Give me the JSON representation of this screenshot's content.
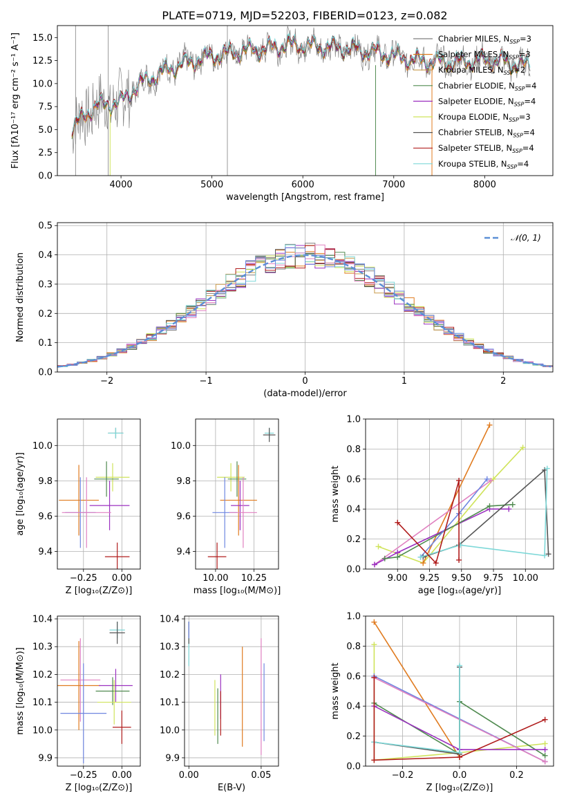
{
  "title": "PLATE=0719, MJD=52203, FIBERID=0123, z=0.082",
  "colors": {
    "c_miles": "#7f7f7f",
    "s_miles": "#e07b1f",
    "k_miles": "#c99a4a",
    "c_elodie": "#4f8a4f",
    "s_elodie": "#9b30c0",
    "k_elodie": "#cfe35a",
    "c_stelib": "#555555",
    "s_stelib": "#b01c1c",
    "k_stelib": "#7dd8d8",
    "blue": "#6f86e0",
    "pink": "#e080c0",
    "data": "#808080",
    "gauss": "#5b8fd6"
  },
  "chart_data": [
    {
      "type": "line",
      "id": "spectrum",
      "xlabel": "wavelength [Angstrom, rest frame]",
      "ylabel": "Flux [fλ10⁻¹⁷ erg cm⁻² s⁻¹ A⁻¹]",
      "xlim": [
        3300,
        8750
      ],
      "ylim": [
        0,
        16.3
      ],
      "xticks": [
        "4000",
        "5000",
        "6000",
        "7000",
        "8000"
      ],
      "yticks": [
        "0.0",
        "2.5",
        "5.0",
        "7.5",
        "10.0",
        "12.5",
        "15.0"
      ],
      "legend_location": "right",
      "legend": [
        {
          "label": "Chabrier MILES, N",
          "sub": "SSP",
          "eq": "=3",
          "color": "c_miles"
        },
        {
          "label": "Salpeter MILES, N",
          "sub": "SSP",
          "eq": "=3",
          "color": "s_miles"
        },
        {
          "label": "Kroupa MILES, N",
          "sub": "SSP",
          "eq": "=2",
          "color": "k_miles"
        },
        {
          "label": "Chabrier ELODIE, N",
          "sub": "SSP",
          "eq": "=4",
          "color": "c_elodie"
        },
        {
          "label": "Salpeter ELODIE, N",
          "sub": "SSP",
          "eq": "=4",
          "color": "s_elodie"
        },
        {
          "label": "Kroupa ELODIE, N",
          "sub": "SSP",
          "eq": "=3",
          "color": "k_elodie"
        },
        {
          "label": "Chabrier STELIB, N",
          "sub": "SSP",
          "eq": "=4",
          "color": "c_stelib"
        },
        {
          "label": "Salpeter STELIB, N",
          "sub": "SSP",
          "eq": "=4",
          "color": "s_stelib"
        },
        {
          "label": "Kroupa STELIB, N",
          "sub": "SSP",
          "eq": "=4",
          "color": "k_stelib"
        }
      ],
      "continuum": [
        [
          3450,
          5
        ],
        [
          3550,
          6
        ],
        [
          3700,
          7.5
        ],
        [
          3850,
          7.8
        ],
        [
          4000,
          8
        ],
        [
          4150,
          9.5
        ],
        [
          4300,
          10.5
        ],
        [
          4500,
          11.5
        ],
        [
          4800,
          12.5
        ],
        [
          5000,
          13
        ],
        [
          5300,
          13.5
        ],
        [
          5600,
          13.8
        ],
        [
          5800,
          14.2
        ],
        [
          6000,
          14.2
        ],
        [
          6200,
          14
        ],
        [
          6500,
          13.8
        ],
        [
          6800,
          13.4
        ],
        [
          7000,
          13
        ],
        [
          7200,
          12.6
        ],
        [
          7400,
          12.4
        ],
        [
          7600,
          12.3
        ],
        [
          7800,
          12.4
        ],
        [
          8000,
          12.6
        ],
        [
          8200,
          12.4
        ],
        [
          8400,
          12
        ]
      ]
    },
    {
      "type": "step",
      "id": "residuals",
      "xlabel": "(data-model)/error",
      "ylabel": "Normed distribution",
      "xlim": [
        -2.5,
        2.5
      ],
      "ylim": [
        0,
        0.51
      ],
      "xticks": [
        "−2",
        "−1",
        "0",
        "1",
        "2"
      ],
      "yticks": [
        "0.0",
        "0.1",
        "0.2",
        "0.3",
        "0.4",
        "0.5"
      ],
      "gauss_label": "𝒩(0, 1)",
      "legend_location": "upper right"
    },
    {
      "type": "errorbar",
      "id": "age-vs-Z",
      "xlabel": "Z [log₁₀(Z/Z⊙)]",
      "ylabel": "age  [log₁₀(age/yr)]",
      "xlim": [
        -0.42,
        0.12
      ],
      "ylim": [
        9.3,
        10.15
      ],
      "xticks": [
        "−0.25",
        "0.00"
      ],
      "yticks": [
        "9.4",
        "9.6",
        "9.8",
        "10.0"
      ],
      "points": [
        {
          "x": -0.04,
          "y": 10.07,
          "xe": 0.05,
          "ye": 0.03,
          "color": "c_stelib"
        },
        {
          "x": -0.04,
          "y": 10.07,
          "xe": 0.05,
          "ye": 0.03,
          "color": "k_stelib"
        },
        {
          "x": -0.06,
          "y": 9.82,
          "xe": 0.11,
          "ye": 0.08,
          "color": "k_elodie"
        },
        {
          "x": -0.1,
          "y": 9.81,
          "xe": 0.08,
          "ye": 0.1,
          "color": "c_elodie"
        },
        {
          "x": -0.28,
          "y": 9.69,
          "xe": 0.13,
          "ye": 0.2,
          "color": "s_miles"
        },
        {
          "x": -0.08,
          "y": 9.66,
          "xe": 0.13,
          "ye": 0.14,
          "color": "s_elodie"
        },
        {
          "x": -0.27,
          "y": 9.62,
          "xe": 0.1,
          "ye": 0.2,
          "color": "blue"
        },
        {
          "x": -0.23,
          "y": 9.62,
          "xe": 0.16,
          "ye": 0.2,
          "color": "pink"
        },
        {
          "x": -0.03,
          "y": 9.37,
          "xe": 0.08,
          "ye": 0.08,
          "color": "s_stelib"
        }
      ]
    },
    {
      "type": "errorbar",
      "id": "age-vs-mass",
      "xlabel": "mass [log₁₀(M/M⊙)]",
      "ylabel": "",
      "xlim": [
        9.87,
        10.41
      ],
      "ylim": [
        9.3,
        10.15
      ],
      "xticks": [
        "10.00",
        "10.25"
      ],
      "yticks": [
        "9.4",
        "9.6",
        "9.8",
        "10.0"
      ],
      "points": [
        {
          "x": 10.35,
          "y": 10.07,
          "xe": 0.03,
          "ye": 0.03,
          "color": "k_stelib"
        },
        {
          "x": 10.35,
          "y": 10.06,
          "xe": 0.04,
          "ye": 0.04,
          "color": "c_stelib"
        },
        {
          "x": 10.1,
          "y": 9.82,
          "xe": 0.09,
          "ye": 0.08,
          "color": "k_elodie"
        },
        {
          "x": 10.14,
          "y": 9.81,
          "xe": 0.06,
          "ye": 0.1,
          "color": "c_elodie"
        },
        {
          "x": 10.15,
          "y": 9.69,
          "xe": 0.12,
          "ye": 0.2,
          "color": "s_miles"
        },
        {
          "x": 10.16,
          "y": 9.66,
          "xe": 0.06,
          "ye": 0.14,
          "color": "s_elodie"
        },
        {
          "x": 10.06,
          "y": 9.62,
          "xe": 0.08,
          "ye": 0.2,
          "color": "blue"
        },
        {
          "x": 10.18,
          "y": 9.62,
          "xe": 0.09,
          "ye": 0.2,
          "color": "pink"
        },
        {
          "x": 10.01,
          "y": 9.37,
          "xe": 0.06,
          "ye": 0.08,
          "color": "s_stelib"
        }
      ]
    },
    {
      "type": "line",
      "id": "weight-vs-age",
      "xlabel": "age  [log₁₀(age/yr)]",
      "ylabel": "mass weight",
      "xlim": [
        8.75,
        10.22
      ],
      "ylim": [
        0,
        1.0
      ],
      "xticks": [
        "9.00",
        "9.25",
        "9.50",
        "9.75",
        "10.00"
      ],
      "yticks": [
        "0.0",
        "0.2",
        "0.4",
        "0.6",
        "0.8",
        "1.0"
      ],
      "series": [
        {
          "color": "k_elodie",
          "x": [
            8.85,
            9.2,
            9.75,
            9.98
          ],
          "y": [
            0.15,
            0.04,
            0.6,
            0.81
          ]
        },
        {
          "color": "s_miles",
          "x": [
            9.2,
            9.72
          ],
          "y": [
            0.04,
            0.96
          ]
        },
        {
          "color": "pink",
          "x": [
            8.82,
            9.73
          ],
          "y": [
            0.03,
            0.59
          ]
        },
        {
          "color": "s_elodie",
          "x": [
            8.82,
            9.0,
            9.72,
            9.87
          ],
          "y": [
            0.03,
            0.11,
            0.4,
            0.4
          ]
        },
        {
          "color": "c_elodie",
          "x": [
            8.9,
            9.0,
            9.72,
            9.9
          ],
          "y": [
            0.07,
            0.08,
            0.42,
            0.43
          ]
        },
        {
          "color": "blue",
          "x": [
            9.18,
            9.48,
            9.7
          ],
          "y": [
            0.08,
            0.37,
            0.6
          ]
        },
        {
          "color": "c_stelib",
          "x": [
            9.2,
            9.48,
            10.15,
            10.18
          ],
          "y": [
            0.08,
            0.16,
            0.66,
            0.1
          ]
        },
        {
          "color": "k_stelib",
          "x": [
            9.18,
            9.49,
            10.15,
            10.17
          ],
          "y": [
            0.08,
            0.16,
            0.09,
            0.67
          ]
        },
        {
          "color": "s_stelib",
          "x": [
            9.0,
            9.3,
            9.48,
            9.48
          ],
          "y": [
            0.31,
            0.04,
            0.59,
            0.06
          ]
        }
      ]
    },
    {
      "type": "errorbar",
      "id": "mass-vs-Z",
      "xlabel": "Z [log₁₀(Z/Z⊙)]",
      "ylabel": "mass [log₁₀(M/M⊙)]",
      "xlim": [
        -0.42,
        0.12
      ],
      "ylim": [
        9.87,
        10.41
      ],
      "xticks": [
        "−0.25",
        "0.00"
      ],
      "yticks": [
        "9.9",
        "10.0",
        "10.1",
        "10.2",
        "10.3",
        "10.4"
      ],
      "points": [
        {
          "x": -0.03,
          "y": 10.36,
          "xe": 0.05,
          "ye": 0.03,
          "color": "k_stelib"
        },
        {
          "x": -0.03,
          "y": 10.35,
          "xe": 0.05,
          "ye": 0.04,
          "color": "c_stelib"
        },
        {
          "x": -0.27,
          "y": 10.18,
          "xe": 0.13,
          "ye": 0.15,
          "color": "pink"
        },
        {
          "x": -0.28,
          "y": 10.16,
          "xe": 0.14,
          "ye": 0.16,
          "color": "s_miles"
        },
        {
          "x": -0.04,
          "y": 10.16,
          "xe": 0.11,
          "ye": 0.06,
          "color": "s_elodie"
        },
        {
          "x": -0.06,
          "y": 10.14,
          "xe": 0.11,
          "ye": 0.05,
          "color": "c_elodie"
        },
        {
          "x": -0.05,
          "y": 10.1,
          "xe": 0.11,
          "ye": 0.08,
          "color": "k_elodie"
        },
        {
          "x": -0.25,
          "y": 10.06,
          "xe": 0.15,
          "ye": 0.18,
          "color": "blue"
        },
        {
          "x": 0.0,
          "y": 10.01,
          "xe": 0.06,
          "ye": 0.06,
          "color": "s_stelib"
        }
      ]
    },
    {
      "type": "errorbar",
      "id": "mass-vs-ebv",
      "xlabel": "E(B-V)",
      "ylabel": "",
      "xlim": [
        -0.003,
        0.062
      ],
      "ylim": [
        9.87,
        10.41
      ],
      "xticks": [
        "0.00",
        "0.05"
      ],
      "yticks": [
        "9.9",
        "10.0",
        "10.1",
        "10.2",
        "10.3",
        "10.4"
      ],
      "points": [
        {
          "x": 0.0,
          "y": 10.31,
          "xe": 0,
          "ye": 0.08,
          "color": "k_stelib"
        },
        {
          "x": 0.0,
          "y": 10.35,
          "xe": 0,
          "ye": 0.04,
          "color": "c_stelib"
        },
        {
          "x": 0.0,
          "y": 10.36,
          "xe": 0,
          "ye": 0.03,
          "color": "blue"
        },
        {
          "x": 0.037,
          "y": 10.12,
          "xe": 0,
          "ye": 0.18,
          "color": "s_miles"
        },
        {
          "x": 0.05,
          "y": 10.12,
          "xe": 0,
          "ye": 0.21,
          "color": "pink"
        },
        {
          "x": 0.052,
          "y": 10.1,
          "xe": 0,
          "ye": 0.14,
          "color": "blue"
        },
        {
          "x": 0.018,
          "y": 10.08,
          "xe": 0,
          "ye": 0.1,
          "color": "k_elodie"
        },
        {
          "x": 0.02,
          "y": 10.05,
          "xe": 0,
          "ye": 0.1,
          "color": "c_elodie"
        },
        {
          "x": 0.022,
          "y": 10.12,
          "xe": 0,
          "ye": 0.08,
          "color": "s_elodie"
        },
        {
          "x": 0.022,
          "y": 10.06,
          "xe": 0,
          "ye": 0.08,
          "color": "s_stelib"
        }
      ]
    },
    {
      "type": "line",
      "id": "weight-vs-Z",
      "xlabel": "Z [log₁₀(Z/Z⊙)]",
      "ylabel": "mass weight",
      "xlim": [
        -0.33,
        0.33
      ],
      "ylim": [
        0,
        1.0
      ],
      "xticks": [
        "−0.2",
        "0.0",
        "0.2"
      ],
      "yticks": [
        "0.0",
        "0.2",
        "0.4",
        "0.6",
        "0.8",
        "1.0"
      ],
      "series": [
        {
          "color": "s_miles",
          "x": [
            -0.3,
            0.0
          ],
          "y": [
            0.96,
            0.06
          ]
        },
        {
          "color": "k_elodie",
          "x": [
            -0.3,
            -0.3,
            0.0,
            0.3
          ],
          "y": [
            0.81,
            0.04,
            0.09,
            0.15
          ]
        },
        {
          "color": "blue",
          "x": [
            -0.3,
            0.3
          ],
          "y": [
            0.6,
            0.03
          ]
        },
        {
          "color": "pink",
          "x": [
            -0.3,
            0.3
          ],
          "y": [
            0.59,
            0.03
          ]
        },
        {
          "color": "c_elodie",
          "x": [
            -0.3,
            0.0,
            0.0,
            0.3
          ],
          "y": [
            0.42,
            0.08,
            0.43,
            0.07
          ]
        },
        {
          "color": "s_elodie",
          "x": [
            -0.3,
            0.0,
            0.3
          ],
          "y": [
            0.4,
            0.11,
            0.11
          ]
        },
        {
          "color": "c_stelib",
          "x": [
            -0.3,
            0.0,
            0.0
          ],
          "y": [
            0.16,
            0.08,
            0.66
          ]
        },
        {
          "color": "k_stelib",
          "x": [
            -0.3,
            0.0,
            0.0
          ],
          "y": [
            0.16,
            0.09,
            0.67
          ]
        },
        {
          "color": "s_stelib",
          "x": [
            -0.3,
            -0.3,
            0.0,
            0.3
          ],
          "y": [
            0.59,
            0.04,
            0.06,
            0.31
          ]
        }
      ]
    }
  ]
}
